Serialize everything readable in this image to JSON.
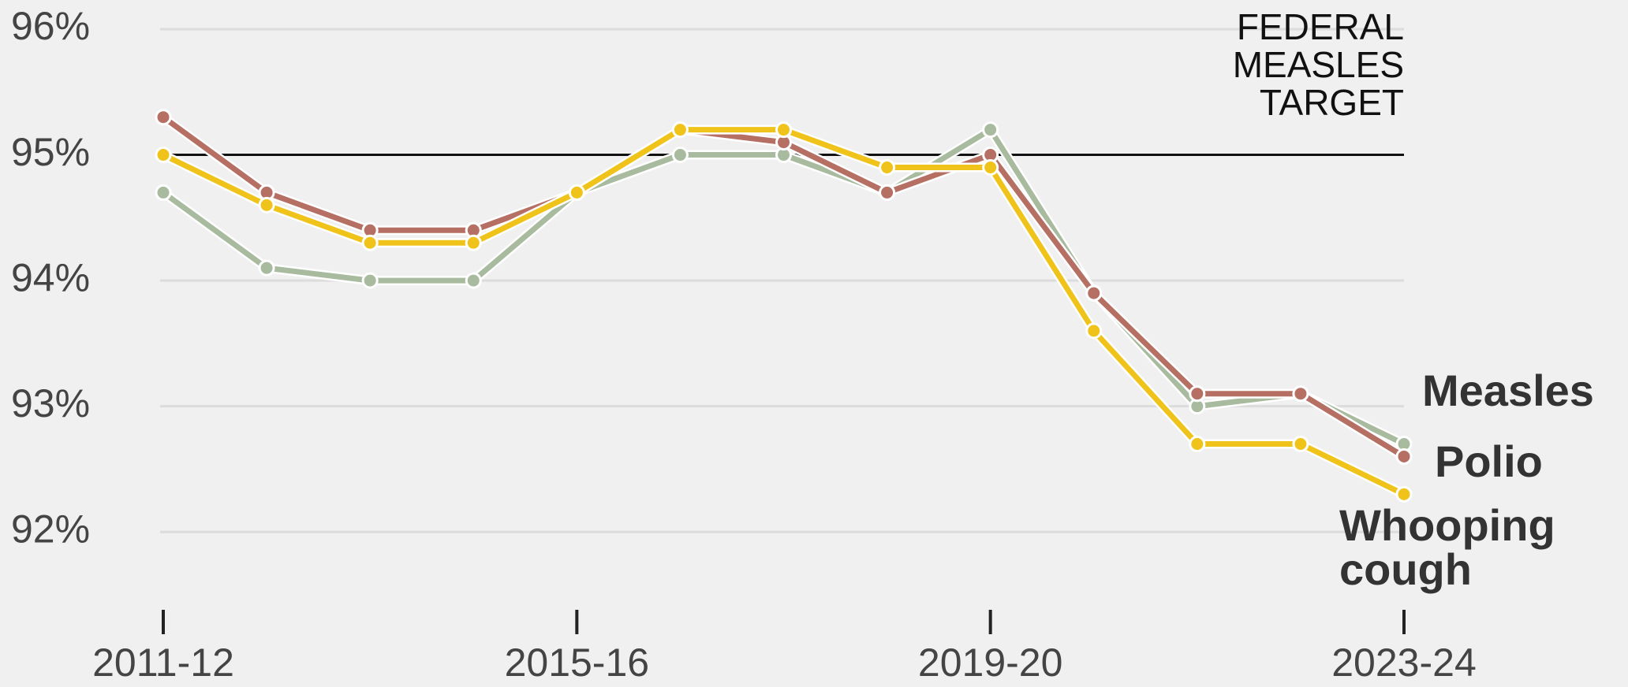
{
  "chart_data": {
    "type": "line",
    "categories": [
      "2011-12",
      null,
      null,
      null,
      "2015-16",
      null,
      null,
      null,
      "2019-20",
      null,
      null,
      null,
      "2023-24"
    ],
    "series": [
      {
        "name": "Measles",
        "color": "#a9bb9f",
        "values": [
          94.7,
          94.1,
          94.0,
          94.0,
          94.7,
          95.0,
          95.0,
          94.7,
          95.2,
          93.9,
          93.0,
          93.1,
          92.7
        ]
      },
      {
        "name": "Polio",
        "color": "#b56f63",
        "values": [
          95.3,
          94.7,
          94.4,
          94.4,
          94.7,
          95.2,
          95.1,
          94.7,
          95.0,
          93.9,
          93.1,
          93.1,
          92.6
        ]
      },
      {
        "name": "Whooping cough",
        "color": "#f0c31a",
        "values": [
          95.0,
          94.6,
          94.3,
          94.3,
          94.7,
          95.2,
          95.2,
          94.9,
          94.9,
          93.6,
          92.7,
          92.7,
          92.3
        ]
      }
    ],
    "ylim": [
      91.5,
      96
    ],
    "yticks": [
      {
        "value": 92,
        "label": "92%"
      },
      {
        "value": 93,
        "label": "93%"
      },
      {
        "value": 94,
        "label": "94%"
      },
      {
        "value": 95,
        "label": "95%"
      },
      {
        "value": 96,
        "label": "96%"
      }
    ],
    "grid": true,
    "target": 95,
    "annotation": [
      "FEDERAL",
      "MEASLES",
      "TARGET"
    ]
  }
}
